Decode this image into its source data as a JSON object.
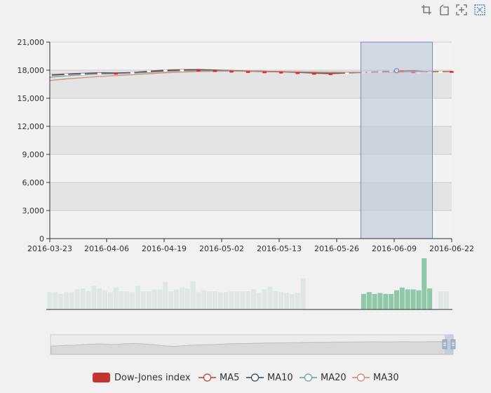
{
  "toolbox": {
    "icons": [
      "brush-rect-icon",
      "brush-polygon-icon",
      "brush-keep-icon",
      "brush-clear-icon"
    ]
  },
  "legend": [
    {
      "label": "Dow-Jones index",
      "color": "#c23531",
      "style": "candle"
    },
    {
      "label": "MA5",
      "color": "#c23531",
      "style": "line"
    },
    {
      "label": "MA10",
      "color": "#2f4554",
      "style": "line"
    },
    {
      "label": "MA20",
      "color": "#61a0a8",
      "style": "line"
    },
    {
      "label": "MA30",
      "color": "#d48265",
      "style": "line"
    }
  ],
  "colors": {
    "up": "#14b143",
    "down": "#ef232a",
    "brush_fill": "#b8c3d8",
    "volume_default": "#dfe7e2",
    "volume_selected": "#8fc8a8",
    "band": "#e4e4e4",
    "plot_bg": "#f2f2f2"
  },
  "chart_data": {
    "type": "line",
    "x_ticks": [
      "2016-03-23",
      "2016-04-06",
      "2016-04-19",
      "2016-05-02",
      "2016-05-13",
      "2016-05-26",
      "2016-06-09",
      "2016-06-22"
    ],
    "y_ticks": [
      "0",
      "3,000",
      "6,000",
      "9,000",
      "12,000",
      "15,000",
      "18,000",
      "21,000"
    ],
    "ylim": [
      0,
      21000
    ],
    "split_area": true,
    "series": [
      {
        "name": "MA5",
        "x": [
          0,
          3,
          6,
          9,
          12,
          15,
          18,
          21,
          24,
          27,
          30,
          33,
          36,
          39,
          42,
          45,
          48,
          51,
          54,
          57,
          60,
          63,
          66,
          69,
          72,
          73
        ],
        "values": [
          17520,
          17600,
          17670,
          17720,
          17700,
          17750,
          17900,
          18020,
          18060,
          18070,
          18020,
          17940,
          17880,
          17840,
          17820,
          17760,
          17680,
          17620,
          17700,
          17780,
          17850,
          17900,
          17960,
          17820,
          17850,
          17860
        ]
      },
      {
        "name": "MA10",
        "x": [
          0,
          3,
          6,
          9,
          12,
          15,
          18,
          21,
          24,
          27,
          30,
          33,
          36,
          39,
          42,
          45,
          48,
          51,
          54,
          57,
          60,
          63,
          66,
          69,
          72,
          73
        ],
        "values": [
          17450,
          17560,
          17640,
          17690,
          17690,
          17720,
          17840,
          17950,
          18010,
          18040,
          18010,
          17960,
          17910,
          17880,
          17840,
          17790,
          17730,
          17680,
          17710,
          17760,
          17810,
          17860,
          17900,
          17860,
          17860,
          17870
        ]
      },
      {
        "name": "MA20",
        "x": [
          0,
          3,
          6,
          9,
          12,
          15,
          18,
          21,
          24,
          27,
          30,
          33,
          36,
          39,
          42,
          45,
          48,
          51,
          54,
          57,
          60,
          63,
          66,
          69,
          72,
          73
        ],
        "values": [
          17250,
          17400,
          17500,
          17580,
          17620,
          17680,
          17760,
          17860,
          17930,
          17960,
          17970,
          17950,
          17920,
          17880,
          17850,
          17810,
          17770,
          17740,
          17740,
          17760,
          17790,
          17820,
          17850,
          17860,
          17860,
          17870
        ]
      },
      {
        "name": "MA30",
        "x": [
          0,
          3,
          6,
          9,
          12,
          15,
          18,
          21,
          24,
          27,
          30,
          33,
          36,
          39,
          42,
          45,
          48,
          51,
          54,
          57,
          60,
          63,
          66,
          69,
          72,
          73
        ],
        "values": [
          16900,
          17060,
          17200,
          17320,
          17420,
          17520,
          17620,
          17720,
          17800,
          17860,
          17890,
          17900,
          17890,
          17870,
          17850,
          17830,
          17800,
          17780,
          17770,
          17770,
          17780,
          17800,
          17820,
          17840,
          17850,
          17860
        ]
      }
    ],
    "candles": {
      "x": [
        0,
        3,
        6,
        9,
        12,
        15,
        18,
        21,
        24,
        27,
        30,
        33,
        36,
        39,
        42,
        45,
        48,
        51,
        54,
        57,
        58,
        60,
        62,
        63,
        64,
        66,
        67,
        69,
        71,
        73
      ],
      "close": [
        17550,
        17600,
        17650,
        17700,
        17680,
        17780,
        17950,
        18030,
        18050,
        18000,
        17950,
        17880,
        17860,
        17820,
        17800,
        17700,
        17650,
        17620,
        17720,
        17820,
        17850,
        17900,
        17950,
        18000,
        17870,
        17760,
        17780,
        17830,
        17880,
        17860
      ],
      "open": [
        17500,
        17580,
        17620,
        17690,
        17700,
        17740,
        17900,
        17990,
        18040,
        18030,
        17980,
        17920,
        17880,
        17850,
        17820,
        17760,
        17690,
        17650,
        17680,
        17780,
        17830,
        17870,
        17900,
        17960,
        17980,
        17850,
        17760,
        17800,
        17840,
        17890
      ]
    },
    "volume": {
      "count": 74,
      "values": [
        95,
        95,
        85,
        95,
        95,
        110,
        115,
        100,
        130,
        115,
        105,
        95,
        120,
        100,
        100,
        95,
        130,
        100,
        100,
        110,
        110,
        150,
        100,
        110,
        120,
        115,
        155,
        95,
        105,
        100,
        100,
        95,
        95,
        100,
        100,
        100,
        100,
        110,
        90,
        110,
        125,
        100,
        95,
        90,
        85,
        90,
        170,
        0,
        0,
        0,
        0,
        0,
        0,
        0,
        0,
        0,
        0,
        0,
        0,
        0,
        0,
        0,
        0,
        0,
        0,
        0,
        0,
        0,
        0,
        0,
        0,
        0,
        0,
        0
      ],
      "selected_values": [
        85,
        95,
        85,
        90,
        85,
        85,
        105,
        120,
        110,
        110,
        105,
        280,
        115
      ],
      "after_values": [
        100,
        100
      ]
    },
    "brush": {
      "x_start": 56.5,
      "x_end": 69.5
    },
    "overview_profile": [
      12,
      12,
      12.5,
      13,
      13,
      13.5,
      14,
      14.5,
      14.8,
      15,
      14.6,
      14.2,
      14.5,
      15,
      15.4,
      15.6,
      15.2,
      14.8,
      14.2,
      13.6,
      12.8,
      12,
      11.5,
      11.8,
      12.4,
      13,
      13.4,
      13.6,
      13.8,
      14,
      14.2,
      14.6,
      14.9,
      15.2,
      15.4,
      15.5,
      15.6,
      15.8,
      16,
      16.2,
      16.3,
      16.4,
      16.4,
      16.5,
      16.6,
      16.8,
      17,
      17.1,
      17.2,
      17.3,
      17.2,
      17.4,
      17.5,
      17.6,
      17.6,
      17.7,
      17.8,
      17.9,
      18,
      18,
      17.9,
      17.8,
      17.9,
      18,
      18.1,
      18,
      17.9,
      17.9,
      18,
      18.1,
      18.1,
      18.2,
      18.1,
      18
    ]
  }
}
